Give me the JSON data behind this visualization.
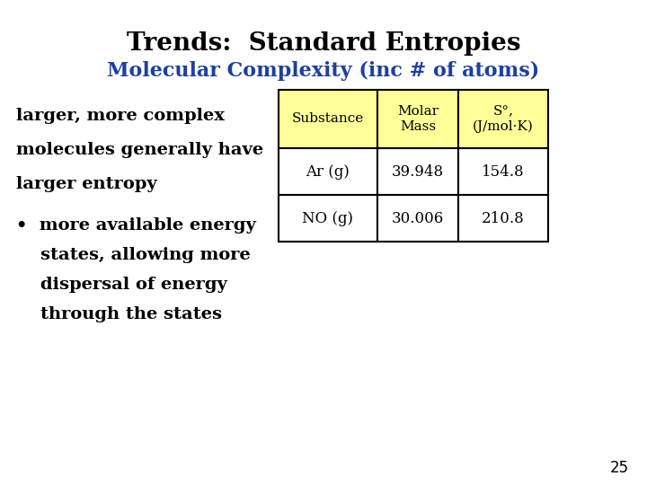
{
  "title": "Trends:  Standard Entropies",
  "subtitle": "Molecular Complexity (inc # of atoms)",
  "title_color": "#000000",
  "subtitle_color": "#1F3F9F",
  "background_color": "#FFFFFF",
  "table_header_bg": "#FFFF99",
  "table_header": [
    "Substance",
    "Molar\nMass",
    "S°,\n(J/mol·K)"
  ],
  "table_rows": [
    [
      "Ar (g)",
      "39.948",
      "154.8"
    ],
    [
      "NO (g)",
      "30.006",
      "210.8"
    ]
  ],
  "body_lines": [
    "larger, more complex",
    "molecules generally have",
    "larger entropy"
  ],
  "bullet_lines": [
    "•  more available energy",
    "    states, allowing more",
    "    dispersal of energy",
    "    through the states"
  ],
  "page_number": "25",
  "title_fontsize": 20,
  "subtitle_fontsize": 16,
  "body_fontsize": 14,
  "table_header_fontsize": 11,
  "table_cell_fontsize": 12
}
